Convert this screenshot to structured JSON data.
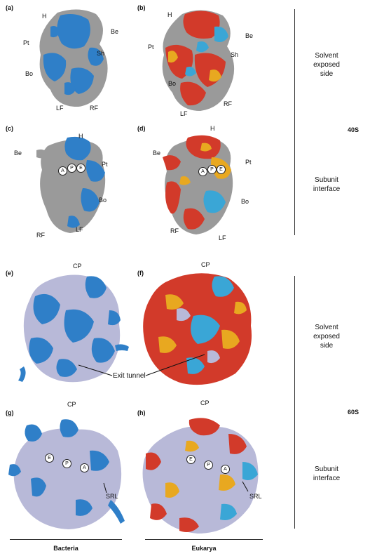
{
  "panels": {
    "a": "(a)",
    "b": "(b)",
    "c": "(c)",
    "d": "(d)",
    "e": "(e)",
    "f": "(f)",
    "g": "(g)",
    "h": "(h)"
  },
  "labels_40s": {
    "H": "H",
    "Be": "Be",
    "Pt": "Pt",
    "Sh": "Sh",
    "Bo": "Bo",
    "LF": "LF",
    "RF": "RF"
  },
  "labels_60s": {
    "CP": "CP",
    "SRL": "SRL",
    "exit_tunnel": "Exit tunnel"
  },
  "sites": {
    "A": "A",
    "P": "P",
    "E": "E"
  },
  "sides": {
    "solvent_1": "Solvent",
    "solvent_2": "exposed",
    "solvent_3": "side",
    "interface_1": "Subunit",
    "interface_2": "interface"
  },
  "subunits": {
    "small": "40S",
    "large": "60S"
  },
  "domains": {
    "bacteria": "Bacteria",
    "eukarya": "Eukarya"
  },
  "colors": {
    "rrna_grey": "#9a9a9a",
    "rrna_lavender": "#b8b9d8",
    "protein_blue": "#2f7fc8",
    "protein_cyan": "#3aa6d6",
    "protein_red": "#d23a2a",
    "protein_orange": "#e8a820"
  }
}
